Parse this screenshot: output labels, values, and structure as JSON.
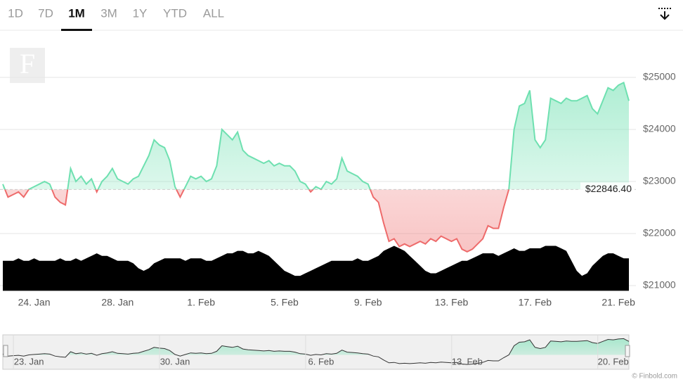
{
  "tabs": [
    "1D",
    "7D",
    "1M",
    "3M",
    "1Y",
    "YTD",
    "ALL"
  ],
  "active_tab": 2,
  "logo": "F",
  "credit": "© Finbold.com",
  "chart_data": {
    "type": "line",
    "xlim": [
      0,
      120
    ],
    "xticks": [
      {
        "value": 6,
        "label": "24. Jan"
      },
      {
        "value": 22,
        "label": "28. Jan"
      },
      {
        "value": 38,
        "label": "1. Feb"
      },
      {
        "value": 54,
        "label": "5. Feb"
      },
      {
        "value": 70,
        "label": "9. Feb"
      },
      {
        "value": 86,
        "label": "13. Feb"
      },
      {
        "value": 102,
        "label": "17. Feb"
      },
      {
        "value": 118,
        "label": "21. Feb"
      }
    ],
    "ylim": [
      20900,
      25700
    ],
    "yticks": [
      {
        "value": 21000,
        "label": "$21000"
      },
      {
        "value": 22000,
        "label": "$22000"
      },
      {
        "value": 23000,
        "label": "$23000"
      },
      {
        "value": 24000,
        "label": "$24000"
      },
      {
        "value": 25000,
        "label": "$25000"
      }
    ],
    "y2lim": [
      0,
      100
    ],
    "grid": true,
    "baseline": {
      "value": 22846.4,
      "label": "$22846.40"
    },
    "series": [
      {
        "color": "#6ee0b0",
        "negative_color": "#ee6b6b",
        "values": [
          22950,
          22700,
          22750,
          22800,
          22700,
          22850,
          22900,
          22950,
          23000,
          22950,
          22700,
          22600,
          22550,
          23250,
          23000,
          23100,
          22950,
          23050,
          22800,
          23000,
          23100,
          23250,
          23050,
          23000,
          22950,
          23050,
          23100,
          23300,
          23500,
          23800,
          23700,
          23650,
          23400,
          22900,
          22700,
          22900,
          23100,
          23050,
          23100,
          23000,
          23050,
          23300,
          24000,
          23900,
          23800,
          23950,
          23600,
          23500,
          23450,
          23400,
          23350,
          23400,
          23300,
          23350,
          23300,
          23300,
          23200,
          23000,
          22950,
          22800,
          22900,
          22850,
          23000,
          22950,
          23050,
          23450,
          23200,
          23150,
          23100,
          23000,
          22950,
          22700,
          22600,
          22200,
          21850,
          21900,
          21750,
          21800,
          21750,
          21800,
          21850,
          21800,
          21900,
          21850,
          21950,
          21900,
          21850,
          21900,
          21700,
          21650,
          21700,
          21800,
          21900,
          22150,
          22100,
          22100,
          22500,
          22850,
          24000,
          24450,
          24500,
          24750,
          23800,
          23650,
          23800,
          24600,
          24550,
          24500,
          24600,
          24550,
          24550,
          24600,
          24650,
          24400,
          24300,
          24550,
          24800,
          24750,
          24850,
          24900,
          24550
        ]
      },
      {
        "axis": "y2",
        "color": "#000000",
        "values": [
          12,
          12,
          12,
          13,
          12,
          12,
          13,
          12,
          12,
          12,
          12,
          13,
          12,
          12,
          13,
          12,
          13,
          14,
          15,
          14,
          14,
          13,
          12,
          12,
          12,
          11,
          9,
          8,
          9,
          11,
          12,
          13,
          13,
          13,
          13,
          12,
          13,
          13,
          13,
          12,
          12,
          13,
          14,
          15,
          15,
          16,
          16,
          15,
          15,
          16,
          15,
          14,
          12,
          10,
          8,
          7,
          6,
          6,
          7,
          8,
          9,
          10,
          11,
          12,
          12,
          12,
          12,
          12,
          13,
          12,
          12,
          13,
          14,
          16,
          17,
          18,
          17,
          16,
          14,
          12,
          10,
          8,
          7,
          7,
          8,
          9,
          10,
          11,
          12,
          12,
          13,
          14,
          15,
          15,
          15,
          14,
          15,
          16,
          17,
          16,
          16,
          17,
          17,
          17,
          18,
          18,
          18,
          17,
          16,
          12,
          8,
          6,
          7,
          10,
          12,
          14,
          15,
          15,
          14,
          13,
          13
        ]
      }
    ],
    "navigator": {
      "ylim": [
        21300,
        25200
      ],
      "xticks": [
        {
          "value": 5,
          "label": "23. Jan"
        },
        {
          "value": 33,
          "label": "30. Jan"
        },
        {
          "value": 61,
          "label": "6. Feb"
        },
        {
          "value": 89,
          "label": "13. Feb"
        },
        {
          "value": 117,
          "label": "20. Feb"
        }
      ]
    }
  }
}
